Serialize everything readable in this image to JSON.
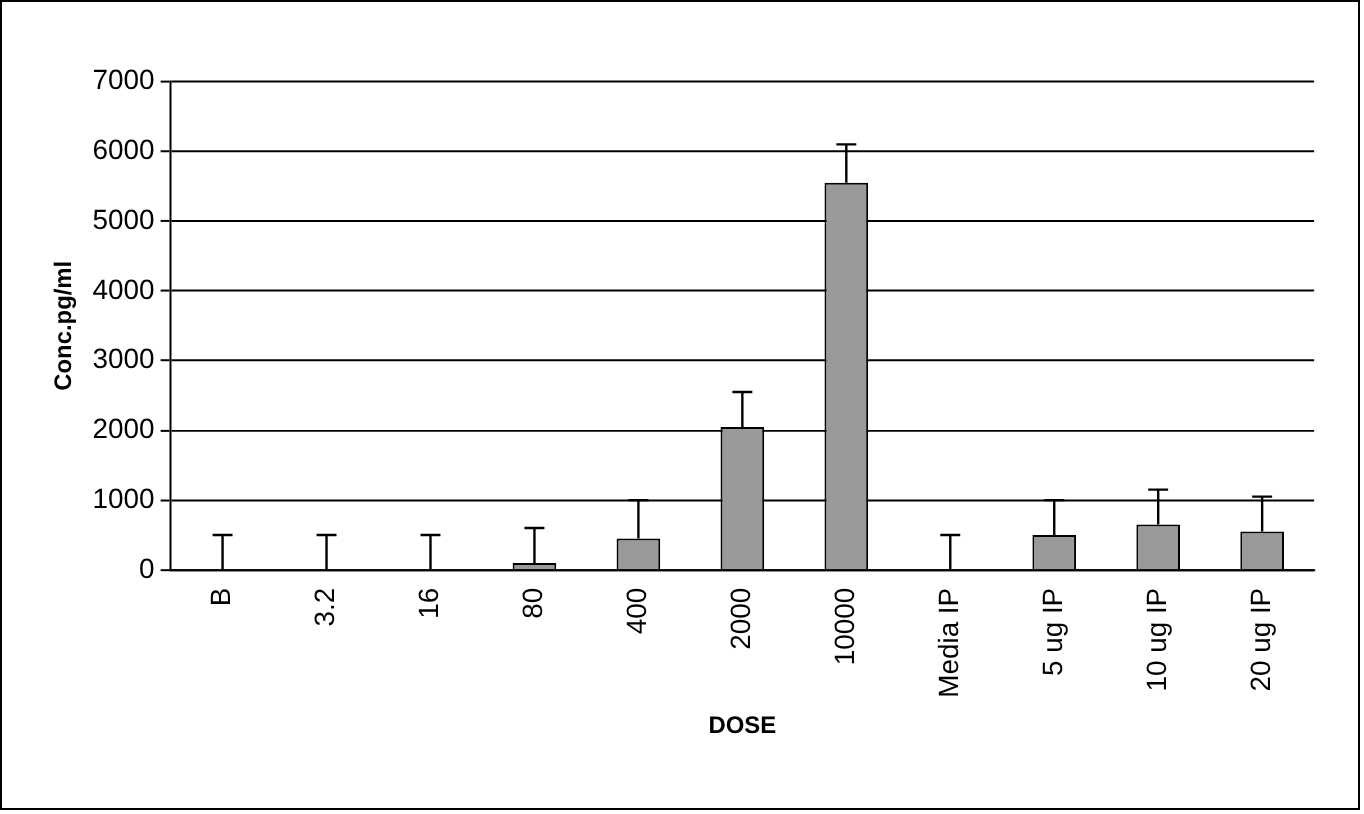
{
  "chart_data": {
    "type": "bar",
    "xlabel": "DOSE",
    "ylabel": "Conc.pg/ml",
    "categories": [
      "B",
      "3.2",
      "16",
      "80",
      "400",
      "2000",
      "10000",
      "Media IP",
      "5 ug IP",
      "10 ug IP",
      "20 ug IP"
    ],
    "values": [
      0,
      0,
      0,
      100,
      450,
      2050,
      5550,
      0,
      500,
      650,
      550
    ],
    "errors": [
      [
        0,
        500
      ],
      [
        0,
        500
      ],
      [
        0,
        500
      ],
      [
        100,
        600
      ],
      [
        450,
        1000
      ],
      [
        2050,
        2550
      ],
      [
        5550,
        6100
      ],
      [
        0,
        500
      ],
      [
        500,
        1000
      ],
      [
        650,
        1150
      ],
      [
        550,
        1050
      ]
    ],
    "color": "#999999",
    "ylim": [
      0,
      7000
    ],
    "yticks": [
      0,
      1000,
      2000,
      3000,
      4000,
      5000,
      6000,
      7000
    ],
    "grid": "y",
    "legend": false
  }
}
